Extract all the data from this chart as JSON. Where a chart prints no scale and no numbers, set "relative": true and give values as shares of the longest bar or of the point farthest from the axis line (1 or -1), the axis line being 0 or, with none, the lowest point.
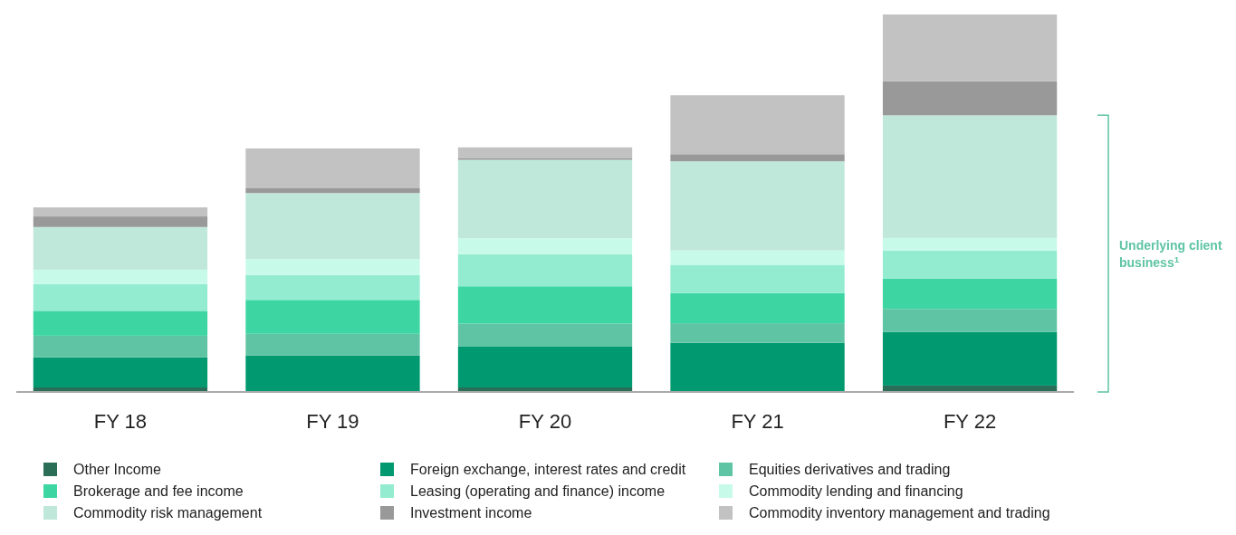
{
  "chart_data": {
    "type": "bar",
    "stacked": true,
    "relative": true,
    "categories": [
      "FY 18",
      "FY 19",
      "FY 20",
      "FY 21",
      "FY 22"
    ],
    "series": [
      {
        "name": "Other Income",
        "color": "#2a6e58",
        "values": [
          0.012,
          0,
          0.012,
          0,
          0.017
        ]
      },
      {
        "name": "Foreign exchange, interest rates and credit",
        "color": "#009970",
        "values": [
          0.08,
          0.097,
          0.108,
          0.13,
          0.142
        ]
      },
      {
        "name": "Equities derivatives and trading",
        "color": "#5ec4a4",
        "values": [
          0.057,
          0.057,
          0.061,
          0.052,
          0.061
        ]
      },
      {
        "name": "Brokerage and fee income",
        "color": "#3dd6a3",
        "values": [
          0.066,
          0.09,
          0.099,
          0.08,
          0.08
        ]
      },
      {
        "name": "Leasing (operating and finance) income",
        "color": "#93ecd0",
        "values": [
          0.071,
          0.066,
          0.085,
          0.075,
          0.075
        ]
      },
      {
        "name": "Commodity lending and financing",
        "color": "#c8faea",
        "values": [
          0.038,
          0.042,
          0.042,
          0.038,
          0.033
        ]
      },
      {
        "name": "Commodity risk management",
        "color": "#bfe8da",
        "values": [
          0.113,
          0.175,
          0.208,
          0.236,
          0.325
        ]
      },
      {
        "name": "Investment income",
        "color": "#999999",
        "values": [
          0.028,
          0.014,
          0.005,
          0.019,
          0.09
        ]
      },
      {
        "name": "Commodity inventory management and trading",
        "color": "#c2c2c2",
        "values": [
          0.024,
          0.104,
          0.028,
          0.156,
          0.177
        ]
      }
    ],
    "annotations": [
      "Underlying client business$^{1}$"
    ],
    "legend": "bottom"
  }
}
